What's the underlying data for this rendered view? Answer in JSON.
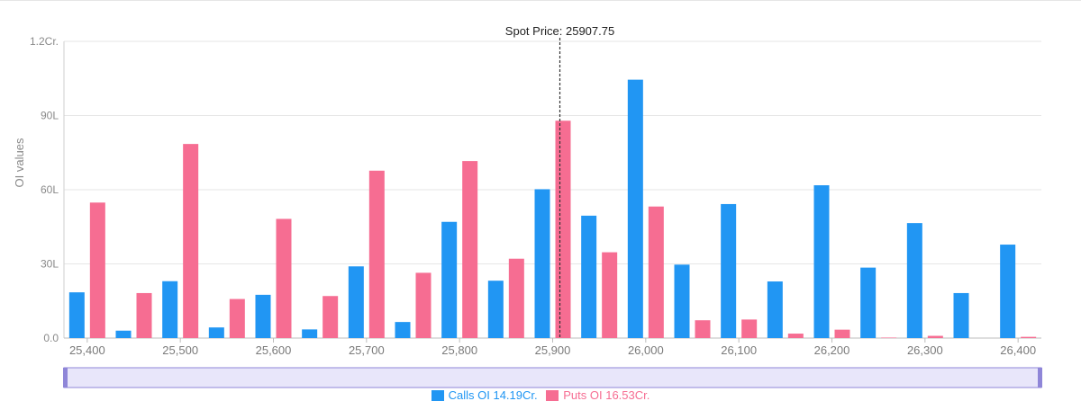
{
  "chart_data": {
    "type": "bar",
    "annotation": "Spot Price: 25907.75",
    "spot_price": 25907.75,
    "ylabel": "OI values",
    "ylim": [
      0,
      12000000
    ],
    "y_ticks": [
      {
        "value": 0,
        "label": "0.0"
      },
      {
        "value": 3000000,
        "label": "30L"
      },
      {
        "value": 6000000,
        "label": "60L"
      },
      {
        "value": 9000000,
        "label": "90L"
      },
      {
        "value": 12000000,
        "label": "1.2Cr."
      }
    ],
    "x_ticks": [
      25400,
      25500,
      25600,
      25700,
      25800,
      25900,
      26000,
      26100,
      26200,
      26300,
      26400
    ],
    "x_tick_labels": [
      "25,400",
      "25,500",
      "25,600",
      "25,700",
      "25,800",
      "25,900",
      "26,000",
      "26,100",
      "26,200",
      "26,300",
      "26,400"
    ],
    "categories": [
      25400,
      25450,
      25500,
      25550,
      25600,
      25650,
      25700,
      25750,
      25800,
      25850,
      25900,
      25950,
      26000,
      26050,
      26100,
      26150,
      26200,
      26250,
      26300,
      26350,
      26400
    ],
    "series": [
      {
        "name": "Calls OI",
        "color": "#2196f3",
        "values": [
          1850000,
          300000,
          2300000,
          430000,
          1750000,
          350000,
          2900000,
          650000,
          4700000,
          2320000,
          6020000,
          4950000,
          10450000,
          2970000,
          5420000,
          2290000,
          6180000,
          2850000,
          4650000,
          1820000,
          3780000
        ]
      },
      {
        "name": "Puts OI",
        "color": "#f66d92",
        "values": [
          5480000,
          1820000,
          7850000,
          1580000,
          4820000,
          1700000,
          6770000,
          2640000,
          7160000,
          3210000,
          8790000,
          3470000,
          5320000,
          720000,
          750000,
          180000,
          340000,
          20000,
          90000,
          0,
          50000
        ]
      }
    ],
    "legend": [
      {
        "label": "Calls OI 14.19Cr.",
        "color": "#2196f3"
      },
      {
        "label": "Puts OI 16.53Cr.",
        "color": "#f66d92"
      }
    ],
    "grid": true,
    "legend_position": "bottom"
  }
}
